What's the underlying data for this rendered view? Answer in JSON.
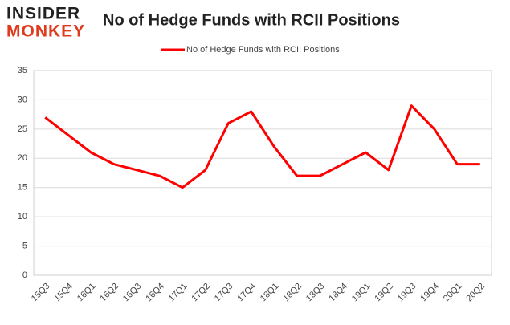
{
  "logo": {
    "top": "INSIDER",
    "bottom": "MONKEY"
  },
  "chart_data": {
    "type": "line",
    "title": "No of Hedge Funds with RCII Positions",
    "categories": [
      "15Q3",
      "15Q4",
      "16Q1",
      "16Q2",
      "16Q3",
      "16Q4",
      "17Q1",
      "17Q2",
      "17Q3",
      "17Q4",
      "18Q1",
      "18Q2",
      "18Q3",
      "18Q4",
      "19Q1",
      "19Q2",
      "19Q3",
      "19Q4",
      "20Q1",
      "20Q2"
    ],
    "series": [
      {
        "name": "No of Hedge Funds with RCII Positions",
        "color": "#ff0000",
        "values": [
          27,
          24,
          21,
          19,
          18,
          17,
          15,
          18,
          26,
          28,
          22,
          17,
          17,
          19,
          21,
          18,
          29,
          25,
          19,
          19
        ]
      }
    ],
    "ylim": [
      0,
      35
    ],
    "yticks": [
      0,
      5,
      10,
      15,
      20,
      25,
      30,
      35
    ],
    "grid": true,
    "legend": "top"
  }
}
